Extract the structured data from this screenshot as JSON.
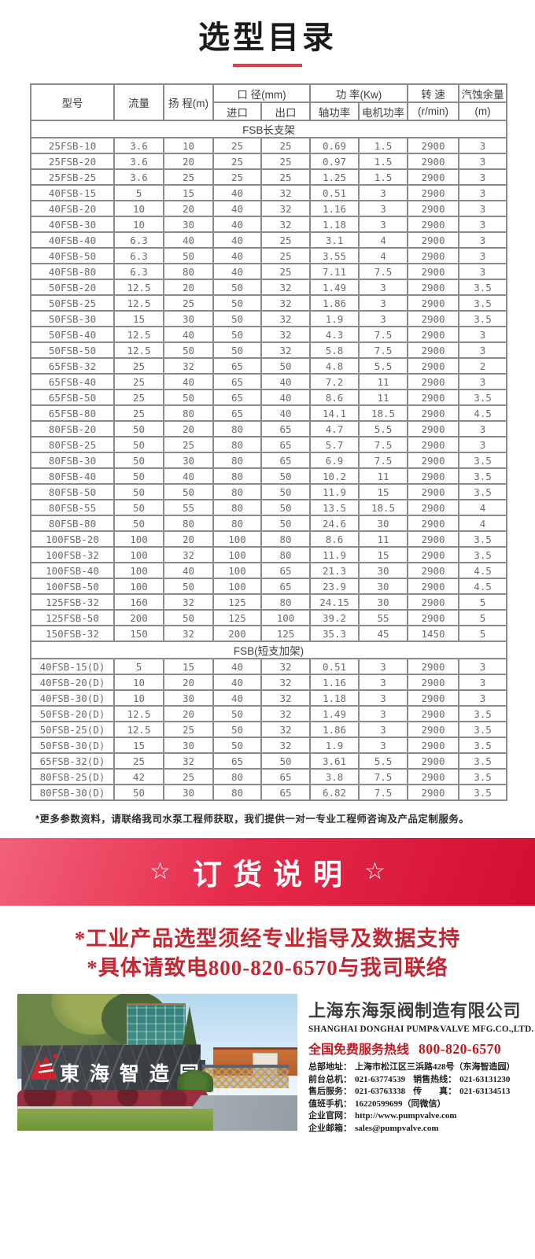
{
  "page": {
    "title": "选型目录",
    "footnote": "*更多参数资料，请联络我司水泵工程师获取，我们提供一对一专业工程师咨询及产品定制服务。"
  },
  "colors": {
    "underline_red": "#e0394e",
    "banner_red_light": "#f2617a",
    "banner_red_dark": "#d30e31",
    "notice_red": "#c32731",
    "hotline_red": "#c4181f",
    "table_border_gray": "#8b8b8b"
  },
  "table": {
    "headers": {
      "model": "型号",
      "flow": "流量",
      "head": "扬 程(m)",
      "diameter_group": "口 径(mm)",
      "inlet": "进口",
      "outlet": "出口",
      "power_group": "功 率(Kw)",
      "shaft_power": "轴功率",
      "motor_power": "电机功率",
      "speed_line1": "转 速",
      "speed_line2": "(r/min)",
      "npsh_line1": "汽蚀余量",
      "npsh_line2": "(m)"
    },
    "sections": [
      {
        "label": "FSB长支架",
        "rows": [
          [
            "25FSB-10",
            "3.6",
            "10",
            "25",
            "25",
            "0.69",
            "1.5",
            "2900",
            "3"
          ],
          [
            "25FSB-20",
            "3.6",
            "20",
            "25",
            "25",
            "0.97",
            "1.5",
            "2900",
            "3"
          ],
          [
            "25FSB-25",
            "3.6",
            "25",
            "25",
            "25",
            "1.25",
            "1.5",
            "2900",
            "3"
          ],
          [
            "40FSB-15",
            "5",
            "15",
            "40",
            "32",
            "0.51",
            "3",
            "2900",
            "3"
          ],
          [
            "40FSB-20",
            "10",
            "20",
            "40",
            "32",
            "1.16",
            "3",
            "2900",
            "3"
          ],
          [
            "40FSB-30",
            "10",
            "30",
            "40",
            "32",
            "1.18",
            "3",
            "2900",
            "3"
          ],
          [
            "40FSB-40",
            "6.3",
            "40",
            "40",
            "25",
            "3.1",
            "4",
            "2900",
            "3"
          ],
          [
            "40FSB-50",
            "6.3",
            "50",
            "40",
            "25",
            "3.55",
            "4",
            "2900",
            "3"
          ],
          [
            "40FSB-80",
            "6.3",
            "80",
            "40",
            "25",
            "7.11",
            "7.5",
            "2900",
            "3"
          ],
          [
            "50FSB-20",
            "12.5",
            "20",
            "50",
            "32",
            "1.49",
            "3",
            "2900",
            "3.5"
          ],
          [
            "50FSB-25",
            "12.5",
            "25",
            "50",
            "32",
            "1.86",
            "3",
            "2900",
            "3.5"
          ],
          [
            "50FSB-30",
            "15",
            "30",
            "50",
            "32",
            "1.9",
            "3",
            "2900",
            "3.5"
          ],
          [
            "50FSB-40",
            "12.5",
            "40",
            "50",
            "32",
            "4.3",
            "7.5",
            "2900",
            "3"
          ],
          [
            "50FSB-50",
            "12.5",
            "50",
            "50",
            "32",
            "5.8",
            "7.5",
            "2900",
            "3"
          ],
          [
            "65FSB-32",
            "25",
            "32",
            "65",
            "50",
            "4.8",
            "5.5",
            "2900",
            "2"
          ],
          [
            "65FSB-40",
            "25",
            "40",
            "65",
            "40",
            "7.2",
            "11",
            "2900",
            "3"
          ],
          [
            "65FSB-50",
            "25",
            "50",
            "65",
            "40",
            "8.6",
            "11",
            "2900",
            "3.5"
          ],
          [
            "65FSB-80",
            "25",
            "80",
            "65",
            "40",
            "14.1",
            "18.5",
            "2900",
            "4.5"
          ],
          [
            "80FSB-20",
            "50",
            "20",
            "80",
            "65",
            "4.7",
            "5.5",
            "2900",
            "3"
          ],
          [
            "80FSB-25",
            "50",
            "25",
            "80",
            "65",
            "5.7",
            "7.5",
            "2900",
            "3"
          ],
          [
            "80FSB-30",
            "50",
            "30",
            "80",
            "65",
            "6.9",
            "7.5",
            "2900",
            "3.5"
          ],
          [
            "80FSB-40",
            "50",
            "40",
            "80",
            "50",
            "10.2",
            "11",
            "2900",
            "3.5"
          ],
          [
            "80FSB-50",
            "50",
            "50",
            "80",
            "50",
            "11.9",
            "15",
            "2900",
            "3.5"
          ],
          [
            "80FSB-55",
            "50",
            "55",
            "80",
            "50",
            "13.5",
            "18.5",
            "2900",
            "4"
          ],
          [
            "80FSB-80",
            "50",
            "80",
            "80",
            "50",
            "24.6",
            "30",
            "2900",
            "4"
          ],
          [
            "100FSB-20",
            "100",
            "20",
            "100",
            "80",
            "8.6",
            "11",
            "2900",
            "3.5"
          ],
          [
            "100FSB-32",
            "100",
            "32",
            "100",
            "80",
            "11.9",
            "15",
            "2900",
            "3.5"
          ],
          [
            "100FSB-40",
            "100",
            "40",
            "100",
            "65",
            "21.3",
            "30",
            "2900",
            "4.5"
          ],
          [
            "100FSB-50",
            "100",
            "50",
            "100",
            "65",
            "23.9",
            "30",
            "2900",
            "4.5"
          ],
          [
            "125FSB-32",
            "160",
            "32",
            "125",
            "80",
            "24.15",
            "30",
            "2900",
            "5"
          ],
          [
            "125FSB-50",
            "200",
            "50",
            "125",
            "100",
            "39.2",
            "55",
            "2900",
            "5"
          ],
          [
            "150FSB-32",
            "150",
            "32",
            "200",
            "125",
            "35.3",
            "45",
            "1450",
            "5"
          ]
        ]
      },
      {
        "label": "FSB(短支加架)",
        "rows": [
          [
            "40FSB-15(D)",
            "5",
            "15",
            "40",
            "32",
            "0.51",
            "3",
            "2900",
            "3"
          ],
          [
            "40FSB-20(D)",
            "10",
            "20",
            "40",
            "32",
            "1.16",
            "3",
            "2900",
            "3"
          ],
          [
            "40FSB-30(D)",
            "10",
            "30",
            "40",
            "32",
            "1.18",
            "3",
            "2900",
            "3"
          ],
          [
            "50FSB-20(D)",
            "12.5",
            "20",
            "50",
            "32",
            "1.49",
            "3",
            "2900",
            "3.5"
          ],
          [
            "50FSB-25(D)",
            "12.5",
            "25",
            "50",
            "32",
            "1.86",
            "3",
            "2900",
            "3.5"
          ],
          [
            "50FSB-30(D)",
            "15",
            "30",
            "50",
            "32",
            "1.9",
            "3",
            "2900",
            "3.5"
          ],
          [
            "65FSB-32(D)",
            "25",
            "32",
            "65",
            "50",
            "3.61",
            "5.5",
            "2900",
            "3.5"
          ],
          [
            "80FSB-25(D)",
            "42",
            "25",
            "80",
            "65",
            "3.8",
            "7.5",
            "2900",
            "3.5"
          ],
          [
            "80FSB-30(D)",
            "50",
            "30",
            "80",
            "65",
            "6.82",
            "7.5",
            "2900",
            "3.5"
          ]
        ]
      }
    ]
  },
  "banner": {
    "star": "☆",
    "title": "订货说明"
  },
  "notices": [
    "*工业产品选型须经专业指导及数据支持",
    "*具体请致电800-820-6570与我司联络"
  ],
  "company": {
    "name_cn": "上海东海泵阀制造有限公司",
    "name_en": "SHANGHAI DONGHAI PUMP&VALVE MFG.CO.,LTD.",
    "hotline_label": "全国免费服务热线",
    "hotline_number": "800-820-6570",
    "contact_lines": [
      [
        {
          "label": "总部地址：",
          "value": "上海市松江区三浜路428号（东海智造园）"
        }
      ],
      [
        {
          "label": "前台总机：",
          "value": "021-63774539"
        },
        {
          "label": "销售热线：",
          "value": "021-63131230"
        }
      ],
      [
        {
          "label": "售后服务：",
          "value": "021-63763338"
        },
        {
          "label": "传　　真：",
          "value": "021-63134513"
        }
      ],
      [
        {
          "label": "值班手机：",
          "value": "16220599699（同微信）"
        }
      ],
      [
        {
          "label": "企业官网：",
          "value": "http://www.pumpvalve.com"
        }
      ],
      [
        {
          "label": "企业邮箱：",
          "value": "sales@pumpvalve.com"
        }
      ]
    ]
  },
  "photo": {
    "sign_text": "東海智造园"
  }
}
